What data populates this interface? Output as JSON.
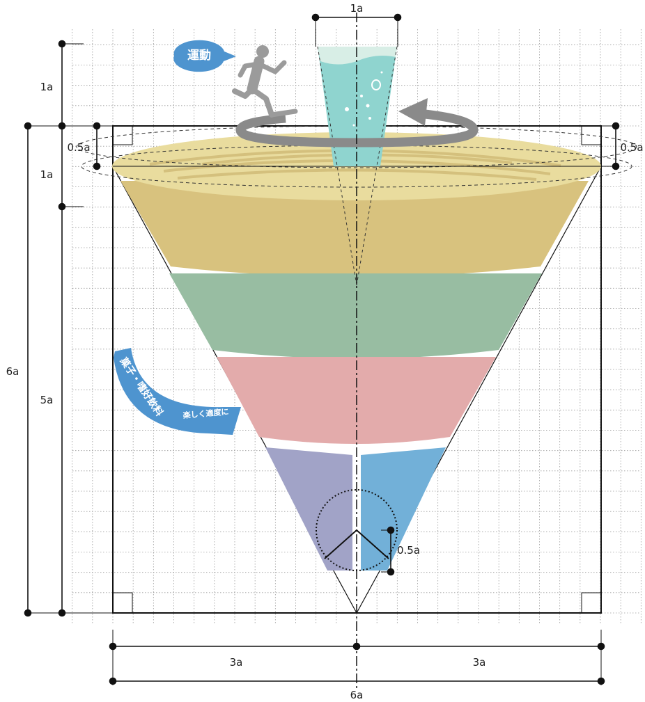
{
  "labels": {
    "top_width": "1a",
    "top_height": "1a",
    "disc_height": "1a",
    "half_left": "0.5a",
    "half_right": "0.5a",
    "total_height": "6a",
    "body_height": "5a",
    "circle_radius": "0.5a",
    "bottom_left": "3a",
    "bottom_right": "3a",
    "bottom_total": "6a"
  },
  "tags": {
    "exercise": "運動",
    "snacks": "菓子・嗜好飲料",
    "snacks_sub": "楽しく適度に"
  },
  "colors": {
    "background": "#ffffff",
    "grid": "#9a9a9a",
    "disc": "#e9dc9e",
    "grain": "#d4c07d",
    "band1": "#d8c27e",
    "band2": "#98bda2",
    "band3": "#e3abab",
    "band4_left": "#a1a3c7",
    "band4_right": "#72b0d8",
    "glass": "#8fd4cf",
    "glass_foam": "#d8eee6",
    "arrow": "#8a8a8a",
    "runner": "#9b9b9b",
    "tag_blue": "#4e94cf",
    "outline": "#111111"
  }
}
